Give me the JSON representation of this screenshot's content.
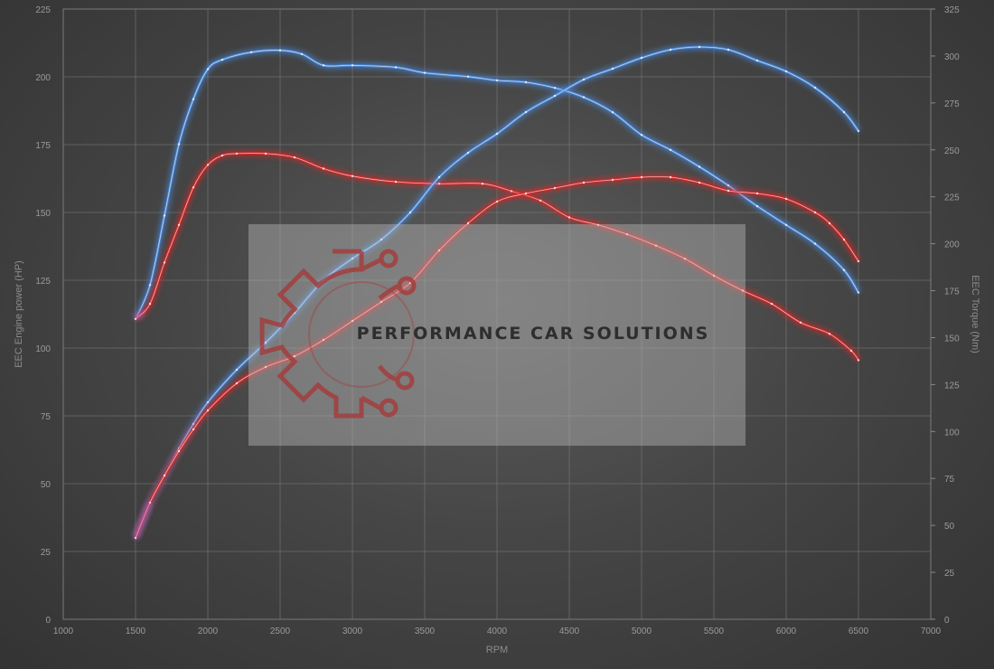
{
  "chart_data": {
    "type": "line",
    "title": "",
    "xlabel": "RPM",
    "ylabel_left": "EEC Engine power (HP)",
    "ylabel_right": "EEC Torque (Nm)",
    "xlim": [
      1000,
      7000
    ],
    "x_ticks": [
      1000,
      1500,
      2000,
      2500,
      3000,
      3500,
      4000,
      4500,
      5000,
      5500,
      6000,
      6500,
      7000
    ],
    "ylim_left": [
      0,
      225
    ],
    "y_ticks_left": [
      0,
      25,
      50,
      75,
      100,
      125,
      150,
      175,
      200,
      225
    ],
    "ylim_right": [
      0,
      325
    ],
    "y_ticks_right": [
      0,
      25,
      50,
      75,
      100,
      125,
      150,
      175,
      200,
      225,
      250,
      275,
      300,
      325
    ],
    "grid": true,
    "legend": "none",
    "colors": {
      "tuned": "#4a8ee6",
      "stock": "#e02525",
      "start": "#a070e0"
    },
    "series": [
      {
        "axis": "right",
        "color": "#4a8ee6",
        "x": [
          1500,
          1600,
          1700,
          1800,
          1900,
          2000,
          2100,
          2300,
          2500,
          2650,
          2800,
          3000,
          3300,
          3500,
          3800,
          4000,
          4200,
          4400,
          4600,
          4800,
          5000,
          5200,
          5400,
          5600,
          5800,
          6000,
          6200,
          6400,
          6500
        ],
        "y": [
          160,
          178,
          215,
          253,
          277,
          293,
          298,
          302,
          303,
          301,
          295,
          295,
          294,
          291,
          289,
          287,
          286,
          283,
          278,
          270,
          258,
          250,
          241,
          231,
          220,
          210,
          200,
          186,
          174
        ]
      },
      {
        "axis": "right",
        "color": "#e02525",
        "x": [
          1500,
          1600,
          1700,
          1800,
          1900,
          2000,
          2100,
          2200,
          2400,
          2600,
          2800,
          3000,
          3300,
          3600,
          3900,
          4100,
          4300,
          4500,
          4700,
          4900,
          5100,
          5300,
          5500,
          5700,
          5900,
          6100,
          6300,
          6450,
          6500
        ],
        "y": [
          160,
          168,
          190,
          210,
          230,
          242,
          247,
          248,
          248,
          246,
          240,
          236,
          233,
          232,
          232,
          228,
          223,
          214,
          210,
          205,
          199,
          192,
          183,
          175,
          168,
          158,
          152,
          143,
          138
        ]
      },
      {
        "axis": "left",
        "color": "#4a8ee6",
        "x": [
          1500,
          1600,
          1700,
          1800,
          1900,
          2000,
          2200,
          2400,
          2600,
          2800,
          3000,
          3200,
          3400,
          3600,
          3800,
          4000,
          4200,
          4400,
          4600,
          4800,
          5000,
          5200,
          5400,
          5600,
          5800,
          6000,
          6200,
          6400,
          6500
        ],
        "y": [
          30,
          43,
          53,
          63,
          72,
          80,
          92,
          102,
          113,
          125,
          133,
          140,
          150,
          163,
          172,
          179,
          187,
          193,
          199,
          203,
          207,
          210,
          211,
          210,
          206,
          202,
          196,
          187,
          180
        ]
      },
      {
        "axis": "left",
        "color": "#e02525",
        "x": [
          1500,
          1600,
          1700,
          1800,
          1900,
          2000,
          2200,
          2400,
          2600,
          2800,
          3000,
          3200,
          3400,
          3600,
          3800,
          4000,
          4200,
          4400,
          4600,
          4800,
          5000,
          5200,
          5400,
          5600,
          5800,
          6000,
          6200,
          6300,
          6400,
          6500
        ],
        "y": [
          30,
          43,
          53,
          62,
          70,
          77,
          87,
          93,
          97,
          103,
          110,
          117,
          124,
          136,
          146,
          154,
          157,
          159,
          161,
          162,
          163,
          163,
          161,
          158,
          157,
          155,
          150,
          146,
          140,
          132
        ]
      }
    ]
  },
  "watermark": {
    "text": "PERFORMANCE CAR SOLUTIONS",
    "icon": "gear-circuit-logo-icon"
  }
}
